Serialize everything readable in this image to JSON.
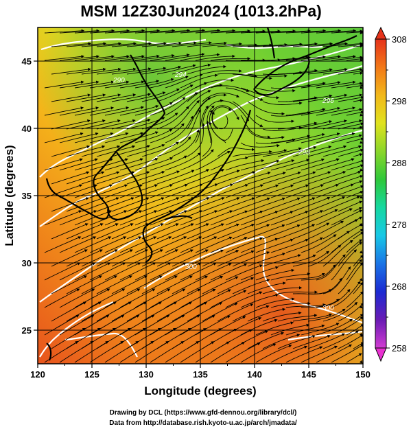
{
  "title": "MSM 12Z30Jun2024 (1013.2hPa)",
  "xlabel": "Longitude (degrees)",
  "ylabel": "Latitude  (degrees)",
  "lon_range": [
    120,
    150
  ],
  "lat_range": [
    22.5,
    47.5
  ],
  "lon_ticks": [
    "120",
    "125",
    "130",
    "135",
    "140",
    "145",
    "150"
  ],
  "lat_ticks": [
    "25",
    "30",
    "35",
    "40",
    "45"
  ],
  "colorbar": {
    "min": 258,
    "max": 308,
    "tick_labels": [
      "308",
      "298",
      "288",
      "278",
      "268",
      "258"
    ],
    "colors": [
      "#d23cd2",
      "#6a1bb4",
      "#1b2ad2",
      "#1a74e6",
      "#18c8e6",
      "#16d8a0",
      "#2ec83a",
      "#8ad62a",
      "#e0e21e",
      "#f2b81a",
      "#f27818",
      "#e6321a"
    ]
  },
  "credits": [
    "Drawing by DCL (https://www.gfd-dennou.org/library/dcl/)",
    "Data from http://database.rish.kyoto-u.ac.jp/arch/jmadata/"
  ],
  "contour_labels": [
    "290",
    "294",
    "296",
    "298",
    "300",
    "300"
  ]
}
